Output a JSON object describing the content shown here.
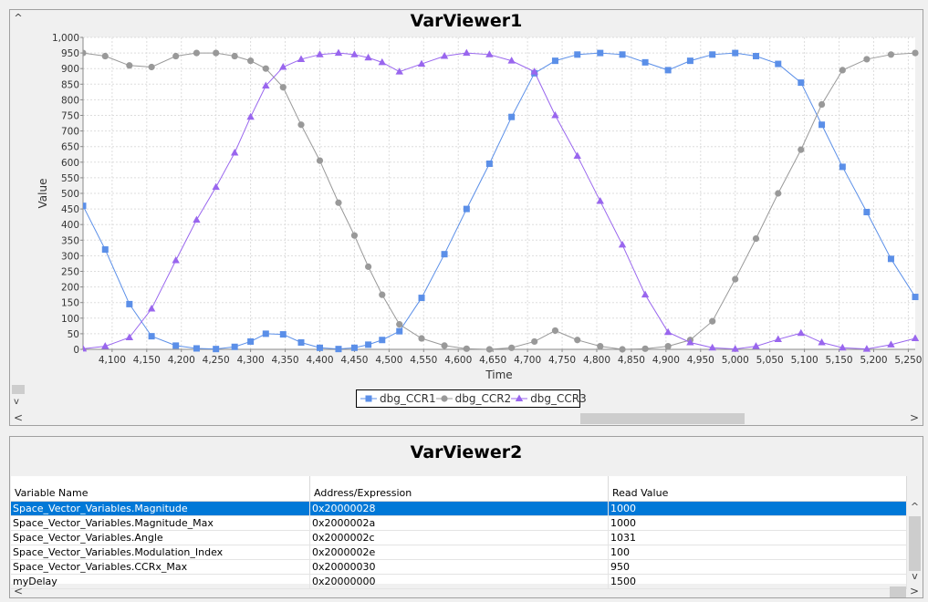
{
  "panel1": {
    "title": "VarViewer1",
    "collapse_glyph": "^"
  },
  "panel2": {
    "title": "VarViewer2"
  },
  "chart_data": {
    "type": "line",
    "xlabel": "Time",
    "ylabel": "Value",
    "xlim": [
      4058,
      5260
    ],
    "ylim": [
      0,
      1000
    ],
    "x_ticks": [
      "4,100",
      "4,150",
      "4,200",
      "4,250",
      "4,300",
      "4,350",
      "4,400",
      "4,450",
      "4,500",
      "4,550",
      "4,600",
      "4,650",
      "4,700",
      "4,750",
      "4,800",
      "4,850",
      "4,900",
      "4,950",
      "5,000",
      "5,050",
      "5,100",
      "5,150",
      "5,200",
      "5,250"
    ],
    "y_ticks": [
      "0",
      "50",
      "100",
      "150",
      "200",
      "250",
      "300",
      "350",
      "400",
      "450",
      "500",
      "550",
      "600",
      "650",
      "700",
      "750",
      "800",
      "850",
      "900",
      "950",
      "1,000"
    ],
    "legend_placement": "bottom",
    "grid": true,
    "x": [
      4058,
      4090,
      4125,
      4157,
      4192,
      4222,
      4250,
      4277,
      4300,
      4322,
      4347,
      4373,
      4400,
      4427,
      4450,
      4470,
      4490,
      4515,
      4547,
      4580,
      4612,
      4645,
      4677,
      4710,
      4740,
      4772,
      4805,
      4837,
      4870,
      4903,
      4935,
      4967,
      5000,
      5030,
      5062,
      5095,
      5125,
      5155,
      5190,
      5225,
      5260
    ],
    "series": [
      {
        "name": "dbg_CCR1",
        "color": "#5b8fe8",
        "marker": "square",
        "values": [
          460,
          320,
          145,
          42,
          12,
          3,
          1,
          8,
          25,
          50,
          48,
          22,
          5,
          1,
          5,
          15,
          30,
          58,
          165,
          305,
          450,
          595,
          745,
          885,
          925,
          945,
          950,
          945,
          920,
          895,
          925,
          945,
          950,
          940,
          915,
          855,
          720,
          585,
          440,
          290,
          168
        ]
      },
      {
        "name": "dbg_CCR2",
        "color": "#999999",
        "marker": "circle",
        "values": [
          950,
          940,
          910,
          905,
          940,
          950,
          950,
          940,
          925,
          900,
          840,
          720,
          605,
          470,
          365,
          265,
          175,
          80,
          35,
          12,
          2,
          0,
          5,
          25,
          60,
          30,
          10,
          0,
          2,
          10,
          30,
          90,
          225,
          355,
          500,
          640,
          785,
          895,
          930,
          945,
          950
        ]
      },
      {
        "name": "dbg_CCR3",
        "color": "#9966ee",
        "marker": "triangle",
        "values": [
          2,
          10,
          38,
          130,
          285,
          415,
          520,
          630,
          745,
          845,
          905,
          930,
          945,
          950,
          945,
          935,
          920,
          890,
          915,
          940,
          950,
          945,
          925,
          890,
          750,
          620,
          475,
          335,
          175,
          55,
          22,
          5,
          1,
          10,
          32,
          52,
          22,
          5,
          1,
          15,
          35
        ]
      }
    ]
  },
  "table": {
    "columns": [
      "Variable Name",
      "Address/Expression",
      "Read Value"
    ],
    "rows": [
      {
        "name": "Space_Vector_Variables.Magnitude",
        "address": "0x20000028",
        "value": "1000"
      },
      {
        "name": "Space_Vector_Variables.Magnitude_Max",
        "address": "0x2000002a",
        "value": "1000"
      },
      {
        "name": "Space_Vector_Variables.Angle",
        "address": "0x2000002c",
        "value": "1031"
      },
      {
        "name": "Space_Vector_Variables.Modulation_Index",
        "address": "0x2000002e",
        "value": "100"
      },
      {
        "name": "Space_Vector_Variables.CCRx_Max",
        "address": "0x20000030",
        "value": "950"
      },
      {
        "name": "myDelay",
        "address": "0x20000000",
        "value": "1500"
      }
    ],
    "selected_row": 0
  },
  "icons": {
    "left_arrow": "<",
    "right_arrow": ">",
    "up_arrow": "^",
    "down_arrow": "v"
  }
}
